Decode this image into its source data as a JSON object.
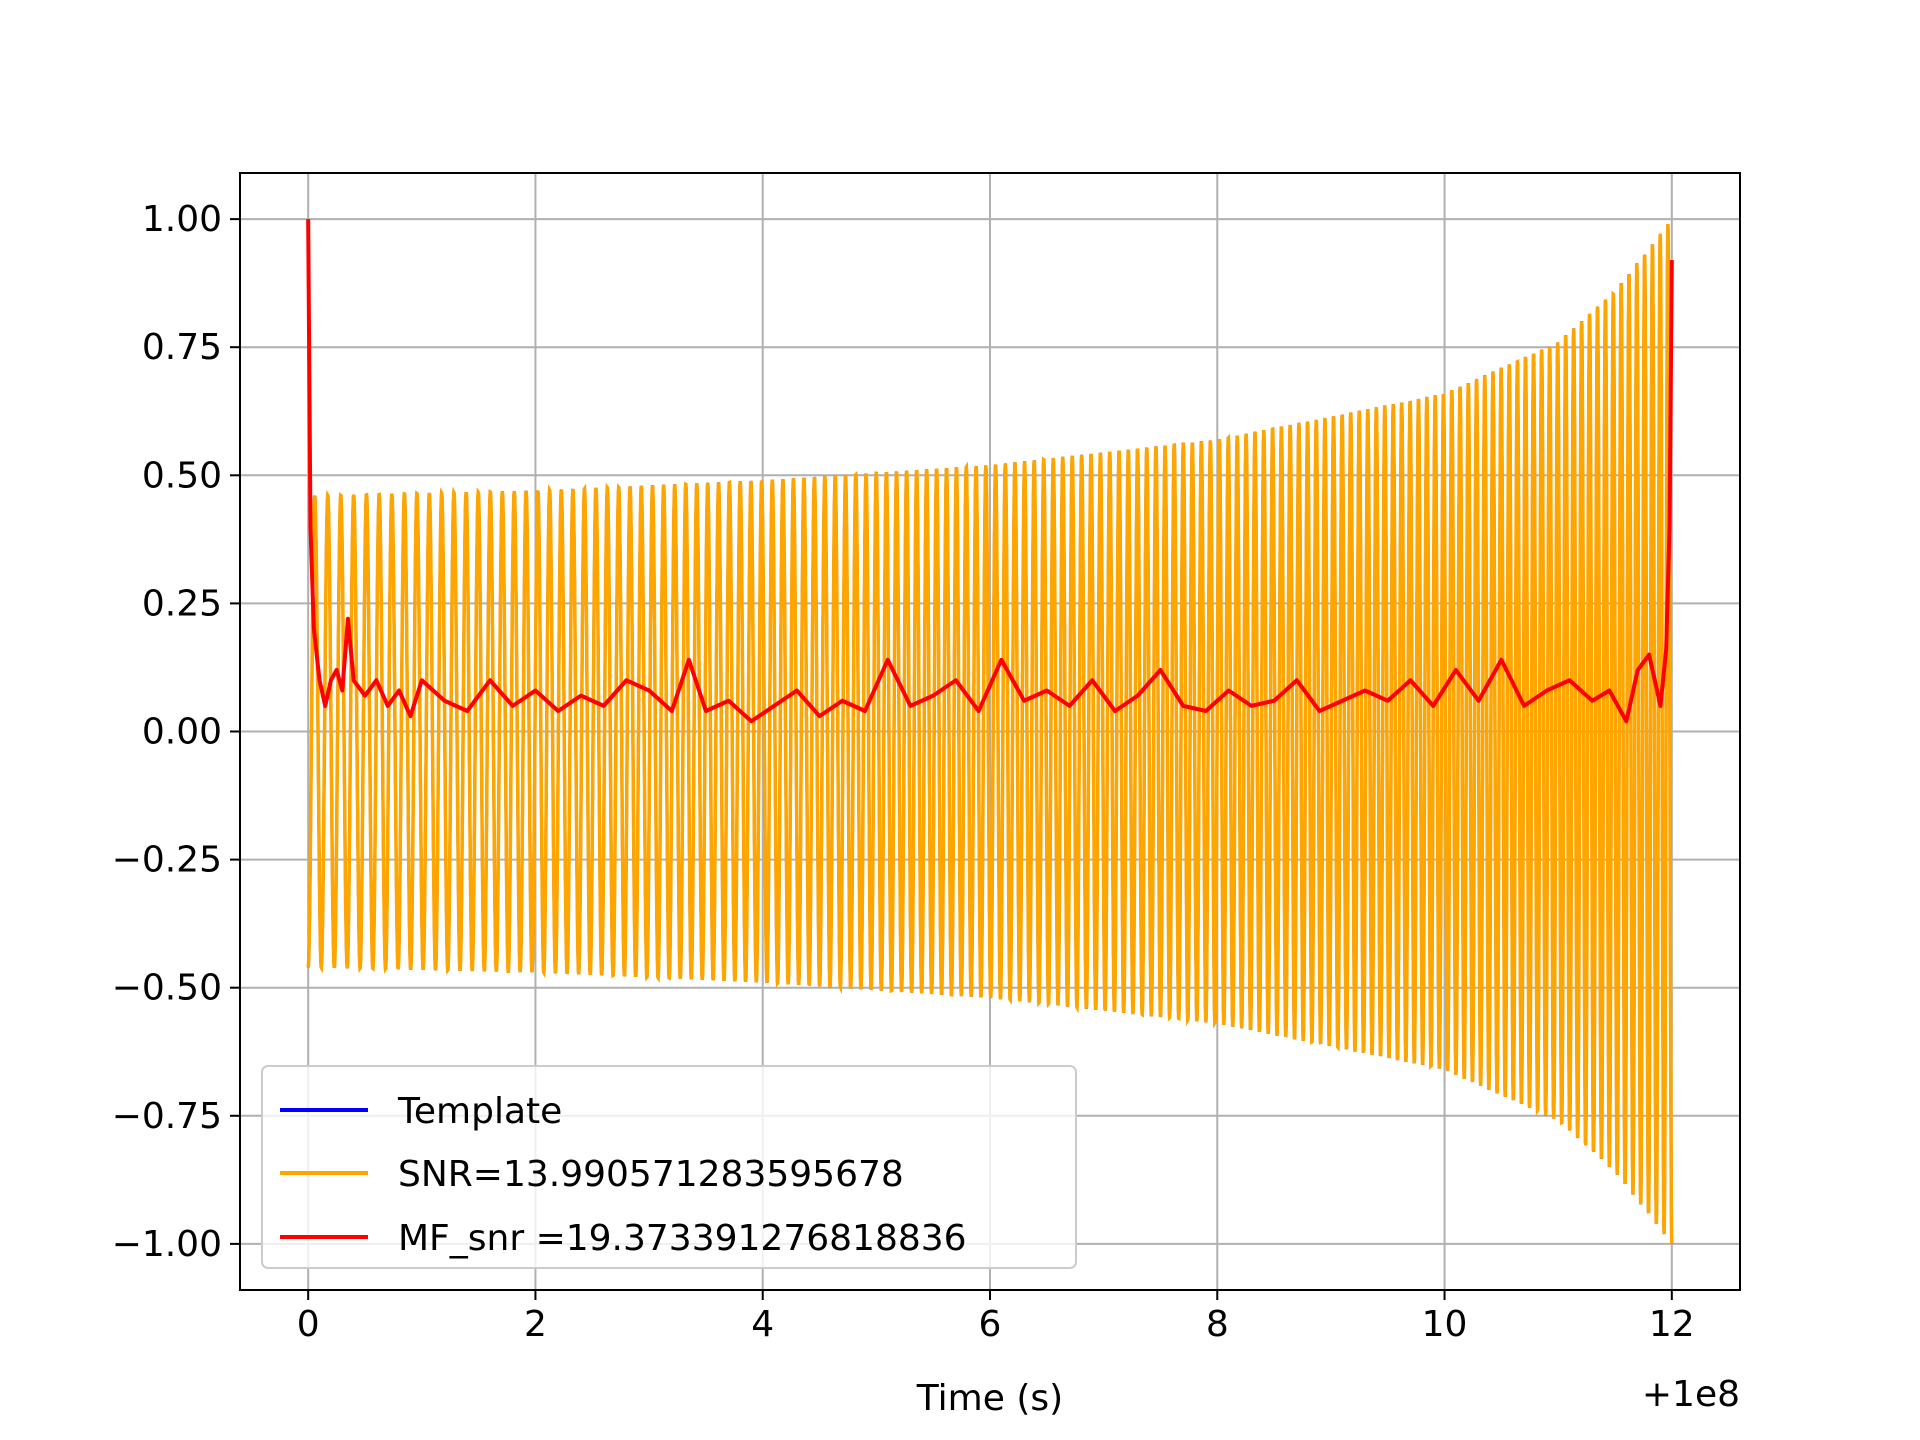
{
  "chart_data": {
    "type": "line",
    "title": "",
    "xlabel": "Time (s)",
    "ylabel": "",
    "x_offset_label": "+1e8",
    "xlim": [
      -0.6,
      12.6
    ],
    "ylim": [
      -1.09,
      1.09
    ],
    "grid": true,
    "legend_location": "lower-left",
    "x_ticks": [
      0,
      2,
      4,
      6,
      8,
      10,
      12
    ],
    "x_tick_labels": [
      "0",
      "2",
      "4",
      "6",
      "8",
      "10",
      "12"
    ],
    "y_ticks": [
      1.0,
      0.75,
      0.5,
      0.25,
      0.0,
      -0.25,
      -0.5,
      -0.75,
      -1.0
    ],
    "y_tick_labels": [
      "1.00",
      "0.75",
      "0.50",
      "0.25",
      "0.00",
      "−0.25",
      "−0.50",
      "−0.75",
      "−1.00"
    ],
    "series": [
      {
        "name": "Template",
        "color": "#0000ff",
        "description": "chirp waveform fully overlapped by the SNR series",
        "x_range": [
          0,
          12
        ],
        "envelope": {
          "x": [
            0,
            2,
            4,
            6,
            8,
            10,
            11,
            11.5,
            12
          ],
          "amplitude": [
            0.46,
            0.47,
            0.49,
            0.52,
            0.57,
            0.66,
            0.76,
            0.86,
            1.0
          ]
        }
      },
      {
        "name": "SNR=13.990571283595678",
        "color": "#ffa500",
        "x_range": [
          0,
          12
        ],
        "cycles": 140,
        "envelope": {
          "x": [
            0,
            2,
            4,
            6,
            8,
            10,
            11,
            11.5,
            12
          ],
          "amplitude": [
            0.46,
            0.47,
            0.49,
            0.52,
            0.57,
            0.66,
            0.76,
            0.86,
            1.0
          ]
        }
      },
      {
        "name": "MF_snr =19.373391276818836",
        "color": "#ff0000",
        "x": [
          0.0,
          0.02,
          0.05,
          0.1,
          0.15,
          0.2,
          0.25,
          0.3,
          0.35,
          0.4,
          0.5,
          0.6,
          0.7,
          0.8,
          0.9,
          1.0,
          1.2,
          1.4,
          1.6,
          1.8,
          2.0,
          2.2,
          2.4,
          2.6,
          2.8,
          3.0,
          3.2,
          3.35,
          3.5,
          3.7,
          3.9,
          4.1,
          4.3,
          4.5,
          4.7,
          4.9,
          5.1,
          5.3,
          5.5,
          5.7,
          5.9,
          6.1,
          6.3,
          6.5,
          6.7,
          6.9,
          7.1,
          7.3,
          7.5,
          7.7,
          7.9,
          8.1,
          8.3,
          8.5,
          8.7,
          8.9,
          9.1,
          9.3,
          9.5,
          9.7,
          9.9,
          10.1,
          10.3,
          10.5,
          10.7,
          10.9,
          11.1,
          11.3,
          11.45,
          11.6,
          11.7,
          11.8,
          11.9,
          11.95,
          11.98,
          12.0
        ],
        "y": [
          1.0,
          0.4,
          0.2,
          0.1,
          0.05,
          0.1,
          0.12,
          0.08,
          0.22,
          0.1,
          0.07,
          0.1,
          0.05,
          0.08,
          0.03,
          0.1,
          0.06,
          0.04,
          0.1,
          0.05,
          0.08,
          0.04,
          0.07,
          0.05,
          0.1,
          0.08,
          0.04,
          0.14,
          0.04,
          0.06,
          0.02,
          0.05,
          0.08,
          0.03,
          0.06,
          0.04,
          0.14,
          0.05,
          0.07,
          0.1,
          0.04,
          0.14,
          0.06,
          0.08,
          0.05,
          0.1,
          0.04,
          0.07,
          0.12,
          0.05,
          0.04,
          0.08,
          0.05,
          0.06,
          0.1,
          0.04,
          0.06,
          0.08,
          0.06,
          0.1,
          0.05,
          0.12,
          0.06,
          0.14,
          0.05,
          0.08,
          0.1,
          0.06,
          0.08,
          0.02,
          0.12,
          0.15,
          0.05,
          0.16,
          0.4,
          0.92
        ]
      }
    ]
  }
}
